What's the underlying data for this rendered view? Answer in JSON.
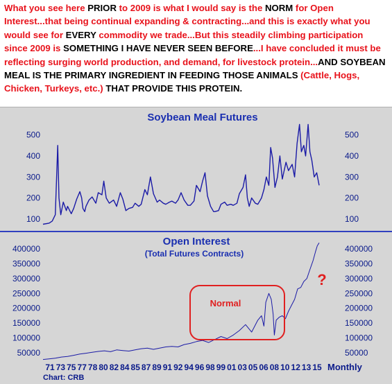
{
  "annotation": {
    "segments": [
      {
        "t": "What you see here ",
        "c": "red"
      },
      {
        "t": "PRIOR",
        "c": "black"
      },
      {
        "t": " to 2009 is what I would say is the ",
        "c": "red"
      },
      {
        "t": "NORM",
        "c": "black"
      },
      {
        "t": " for Open Interest...that being continual expanding & contracting...and this is exactly what you would see for ",
        "c": "red"
      },
      {
        "t": "EVERY",
        "c": "black"
      },
      {
        "t": " commodity we trade...But this steadily climbing participation since 2009 is ",
        "c": "red"
      },
      {
        "t": "SOMETHING I HAVE NEVER SEEN BEFORE",
        "c": "black"
      },
      {
        "t": "...I have concluded it must be reflecting surging world production, and demand, for livestock protein...",
        "c": "red"
      },
      {
        "t": "AND SOYBEAN MEAL IS THE PRIMARY INGREDIENT IN FEEDING THOSE ANIMALS",
        "c": "black"
      },
      {
        "t": "  (Cattle, Hogs, Chicken, Turkeys, etc.) ",
        "c": "red"
      },
      {
        "t": "THAT PROVIDE THIS PROTEIN.",
        "c": "black"
      }
    ]
  },
  "colors": {
    "panel_bg": "#d6d6d6",
    "text_blue": "#0a1a8a",
    "title_blue": "#1a2fb0",
    "series_blue": "#1a1aa6",
    "divider_blue": "#2f3fbf",
    "annotation_red": "#e8121b",
    "box_red": "#e02020"
  },
  "chart_data": [
    {
      "type": "line",
      "title": "Soybean Meal Futures",
      "ylim": [
        60,
        555
      ],
      "yticks": [
        100,
        200,
        300,
        400,
        500
      ],
      "grid": false,
      "series": [
        {
          "x": [
            1971,
            1972,
            1972.5,
            1973,
            1973.4,
            1973.6,
            1973.9,
            1974.3,
            1974.8,
            1975,
            1975.6,
            1976,
            1976.5,
            1977,
            1977.3,
            1977.5,
            1977.8,
            1978,
            1978.5,
            1979,
            1979.6,
            1980,
            1980.6,
            1980.9,
            1981.3,
            1981.8,
            1982.5,
            1983,
            1983.6,
            1984,
            1984.5,
            1985,
            1985.6,
            1986,
            1986.6,
            1987,
            1987.6,
            1988,
            1988.5,
            1989,
            1989.6,
            1990,
            1990.6,
            1991,
            1991.6,
            1992,
            1992.6,
            1993,
            1993.5,
            1994,
            1994.6,
            1995,
            1995.6,
            1996,
            1996.6,
            1997,
            1997.4,
            1997.8,
            1998.3,
            1998.8,
            1999,
            1999.6,
            2000,
            2000.6,
            2001,
            2001.6,
            2002,
            2002.6,
            2003,
            2003.6,
            2004,
            2004.3,
            2004.6,
            2005,
            2005.6,
            2006,
            2006.6,
            2007,
            2007.4,
            2007.8,
            2008.1,
            2008.4,
            2008.8,
            2009.2,
            2009.6,
            2010,
            2010.6,
            2011,
            2011.6,
            2012,
            2012.4,
            2012.8,
            2013.1,
            2013.5,
            2013.8,
            2014.2,
            2014.5,
            2014.8,
            2015.2,
            2015.6,
            2016
          ],
          "values": [
            75,
            80,
            90,
            120,
            450,
            200,
            120,
            180,
            140,
            160,
            125,
            150,
            195,
            230,
            200,
            150,
            135,
            160,
            190,
            205,
            175,
            225,
            215,
            280,
            200,
            175,
            190,
            160,
            225,
            195,
            140,
            150,
            155,
            175,
            160,
            170,
            240,
            215,
            300,
            220,
            180,
            190,
            175,
            170,
            180,
            185,
            175,
            190,
            225,
            190,
            165,
            165,
            185,
            260,
            230,
            280,
            320,
            210,
            160,
            135,
            135,
            140,
            170,
            180,
            165,
            170,
            165,
            175,
            220,
            250,
            310,
            200,
            160,
            200,
            175,
            170,
            200,
            240,
            300,
            260,
            440,
            390,
            250,
            300,
            400,
            290,
            370,
            330,
            360,
            300,
            460,
            550,
            420,
            450,
            400,
            550,
            420,
            380,
            300,
            320,
            260
          ]
        }
      ]
    },
    {
      "type": "line",
      "title": "Open Interest",
      "subtitle": "(Total Futures Contracts)",
      "ylim": [
        20000,
        430000
      ],
      "yticks": [
        50000,
        100000,
        150000,
        200000,
        250000,
        300000,
        350000,
        400000
      ],
      "grid": false,
      "annotations": [
        "Normal",
        "?"
      ],
      "series": [
        {
          "x": [
            1971,
            1972,
            1973,
            1974,
            1975,
            1976,
            1977,
            1978,
            1979,
            1980,
            1981,
            1982,
            1983,
            1984,
            1985,
            1986,
            1987,
            1988,
            1989,
            1990,
            1991,
            1992,
            1993,
            1994,
            1995,
            1996,
            1997,
            1998,
            1999,
            2000,
            2001,
            2002,
            2003,
            2004,
            2005,
            2006,
            2006.6,
            2007,
            2007.3,
            2007.8,
            2008.2,
            2008.5,
            2008.7,
            2009,
            2009.5,
            2010,
            2010.5,
            2011,
            2011.5,
            2012,
            2012.5,
            2013,
            2013.5,
            2014,
            2014.5,
            2015,
            2015.4,
            2015.7,
            2016
          ],
          "values": [
            28000,
            30000,
            32000,
            36000,
            38000,
            42000,
            46000,
            49000,
            52000,
            55000,
            57000,
            54000,
            60000,
            58000,
            56000,
            60000,
            64000,
            66000,
            62000,
            66000,
            70000,
            72000,
            70000,
            78000,
            82000,
            88000,
            92000,
            85000,
            95000,
            105000,
            98000,
            110000,
            125000,
            145000,
            120000,
            160000,
            175000,
            140000,
            220000,
            250000,
            230000,
            180000,
            110000,
            160000,
            170000,
            175000,
            165000,
            190000,
            210000,
            230000,
            265000,
            270000,
            290000,
            300000,
            330000,
            360000,
            390000,
            410000,
            420000
          ]
        }
      ]
    }
  ],
  "xaxis": {
    "tick_labels": [
      "71",
      "73",
      "75",
      "77",
      "78",
      "80",
      "82",
      "84",
      "85",
      "87",
      "89",
      "91",
      "92",
      "94",
      "96",
      "98",
      "99",
      "01",
      "03",
      "05",
      "06",
      "08",
      "10",
      "12",
      "13",
      "15"
    ],
    "right_label": "Monthly"
  },
  "footer": {
    "source": "Chart: CRB"
  }
}
